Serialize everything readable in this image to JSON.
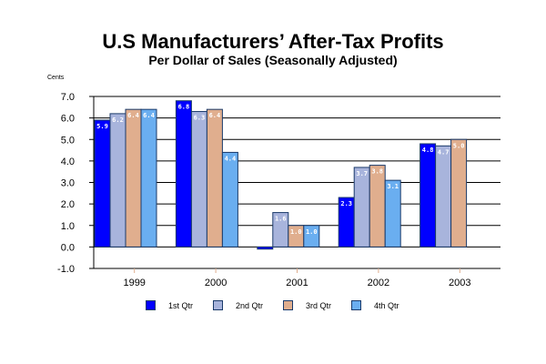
{
  "chart_data": {
    "type": "bar",
    "title": "U.S Manufacturers’ After-Tax Profits",
    "subtitle": "Per Dollar of Sales (Seasonally Adjusted)",
    "ylabel": "Cents",
    "xlabel": "",
    "ylim": [
      -1.0,
      7.0
    ],
    "yticks": [
      "7.0",
      "6.0",
      "5.0",
      "4.0",
      "3.0",
      "2.0",
      "1.0",
      "0.0",
      "-1.0"
    ],
    "ytick_values": [
      7,
      6,
      5,
      4,
      3,
      2,
      1,
      0,
      -1
    ],
    "grid": true,
    "legend_position": "bottom",
    "categories": [
      "1999",
      "2000",
      "2001",
      "2002",
      "2003"
    ],
    "series": [
      {
        "name": "1st Qtr",
        "color": "#0000ff",
        "values": [
          5.9,
          6.8,
          -0.1,
          2.3,
          4.8
        ]
      },
      {
        "name": "2nd Qtr",
        "color": "#a8b4dc",
        "values": [
          6.2,
          6.3,
          1.6,
          3.7,
          4.7
        ]
      },
      {
        "name": "3rd Qtr",
        "color": "#e0ae8e",
        "values": [
          6.4,
          6.4,
          1.0,
          3.8,
          5.0
        ]
      },
      {
        "name": "4th Qtr",
        "color": "#6aaef0",
        "values": [
          6.4,
          4.4,
          1.0,
          3.1,
          null
        ]
      }
    ]
  }
}
